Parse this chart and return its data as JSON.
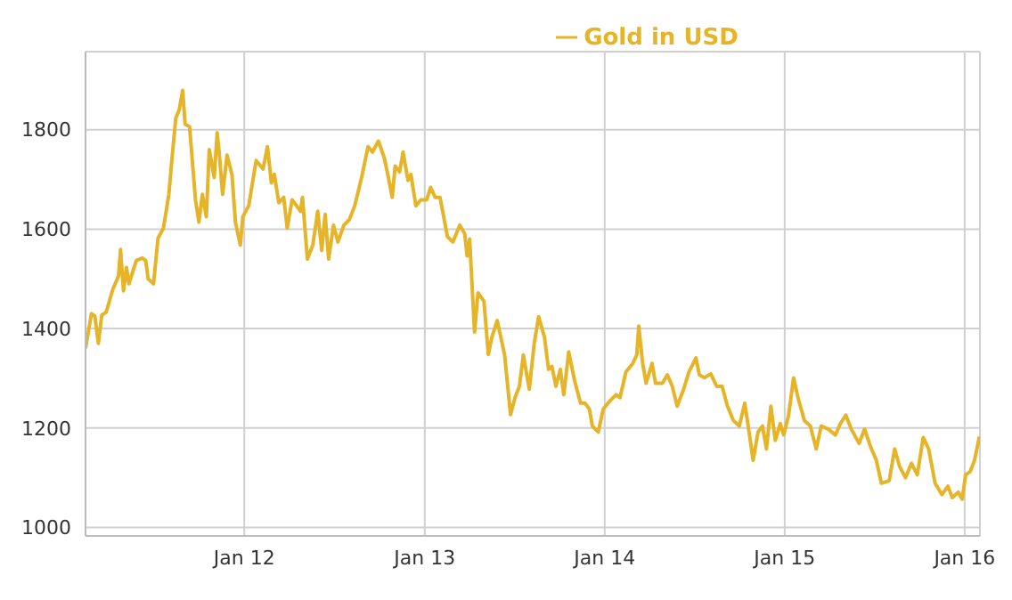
{
  "chart_data": {
    "type": "line",
    "xlim": [
      "2011-02-13",
      "2016-02-01"
    ],
    "ylim": [
      983,
      1957
    ],
    "yticks": [
      1000,
      1200,
      1400,
      1600,
      1800
    ],
    "xticks": [
      {
        "value": "2012-01-01",
        "label": "Jan 12"
      },
      {
        "value": "2013-01-01",
        "label": "Jan 13"
      },
      {
        "value": "2014-01-01",
        "label": "Jan 14"
      },
      {
        "value": "2015-01-01",
        "label": "Jan 15"
      },
      {
        "value": "2016-01-01",
        "label": "Jan 16"
      }
    ],
    "grid": true,
    "legend": "top",
    "x": [
      "2011-02-13",
      "2011-02-25",
      "2011-03-04",
      "2011-03-11",
      "2011-03-18",
      "2011-03-27",
      "2011-04-09",
      "2011-04-21",
      "2011-04-25",
      "2011-05-01",
      "2011-05-07",
      "2011-05-12",
      "2011-05-27",
      "2011-06-08",
      "2011-06-15",
      "2011-06-20",
      "2011-07-01",
      "2011-07-10",
      "2011-07-21",
      "2011-08-01",
      "2011-08-07",
      "2011-08-15",
      "2011-08-22",
      "2011-08-29",
      "2011-09-03",
      "2011-09-12",
      "2011-09-24",
      "2011-10-01",
      "2011-10-08",
      "2011-10-16",
      "2011-10-22",
      "2011-11-01",
      "2011-11-07",
      "2011-11-11",
      "2011-11-18",
      "2011-11-27",
      "2011-12-07",
      "2011-12-14",
      "2011-12-24",
      "2011-12-29",
      "2012-01-10",
      "2012-01-25",
      "2012-02-08",
      "2012-02-17",
      "2012-02-25",
      "2012-03-02",
      "2012-03-11",
      "2012-03-21",
      "2012-03-28",
      "2012-04-07",
      "2012-04-24",
      "2012-04-28",
      "2012-05-08",
      "2012-05-19",
      "2012-05-29",
      "2012-06-06",
      "2012-06-13",
      "2012-06-20",
      "2012-06-30",
      "2012-07-09",
      "2012-07-21",
      "2012-08-01",
      "2012-08-12",
      "2012-08-26",
      "2012-09-08",
      "2012-09-17",
      "2012-09-29",
      "2012-10-11",
      "2012-10-18",
      "2012-10-27",
      "2012-11-02",
      "2012-11-11",
      "2012-11-18",
      "2012-11-28",
      "2012-12-04",
      "2012-12-14",
      "2012-12-24",
      "2013-01-05",
      "2013-01-13",
      "2013-01-22",
      "2013-02-01",
      "2013-02-16",
      "2013-02-27",
      "2013-03-13",
      "2013-03-23",
      "2013-03-28",
      "2013-04-02",
      "2013-04-12",
      "2013-04-19",
      "2013-05-01",
      "2013-05-10",
      "2013-05-17",
      "2013-05-28",
      "2013-06-12",
      "2013-06-24",
      "2013-07-03",
      "2013-07-12",
      "2013-07-20",
      "2013-08-01",
      "2013-08-11",
      "2013-08-20",
      "2013-09-01",
      "2013-09-09",
      "2013-09-16",
      "2013-09-24",
      "2013-10-03",
      "2013-10-10",
      "2013-10-20",
      "2013-11-01",
      "2013-11-13",
      "2013-11-22",
      "2013-12-01",
      "2013-12-07",
      "2013-12-19",
      "2013-12-29",
      "2014-01-12",
      "2014-01-24",
      "2014-02-01",
      "2014-02-13",
      "2014-02-27",
      "2014-03-07",
      "2014-03-11",
      "2014-03-19",
      "2014-03-26",
      "2014-04-07",
      "2014-04-14",
      "2014-04-28",
      "2014-05-08",
      "2014-05-18",
      "2014-05-28",
      "2014-06-10",
      "2014-06-21",
      "2014-07-05",
      "2014-07-12",
      "2014-07-22",
      "2014-08-04",
      "2014-08-16",
      "2014-08-27",
      "2014-09-07",
      "2014-09-19",
      "2014-10-01",
      "2014-10-12",
      "2014-10-19",
      "2014-10-29",
      "2014-11-08",
      "2014-11-17",
      "2014-11-25",
      "2014-12-04",
      "2014-12-13",
      "2014-12-23",
      "2014-12-30",
      "2015-01-09",
      "2015-01-19",
      "2015-01-28",
      "2015-02-10",
      "2015-02-22",
      "2015-03-06",
      "2015-03-16",
      "2015-03-30",
      "2015-04-14",
      "2015-04-24",
      "2015-05-05",
      "2015-05-16",
      "2015-06-01",
      "2015-06-12",
      "2015-06-24",
      "2015-07-06",
      "2015-07-16",
      "2015-08-01",
      "2015-08-12",
      "2015-08-22",
      "2015-09-03",
      "2015-09-15",
      "2015-09-27",
      "2015-10-09",
      "2015-10-20",
      "2015-11-02",
      "2015-11-16",
      "2015-11-28",
      "2015-12-07",
      "2015-12-19",
      "2015-12-27",
      "2016-01-03",
      "2016-01-12",
      "2016-01-21",
      "2016-01-31"
    ],
    "series": [
      {
        "name": "Gold in USD",
        "color": "#e6b428",
        "values": [
          1360,
          1430,
          1425,
          1370,
          1427,
          1433,
          1478,
          1506,
          1559,
          1476,
          1523,
          1490,
          1537,
          1542,
          1537,
          1500,
          1490,
          1582,
          1602,
          1670,
          1738,
          1823,
          1840,
          1879,
          1811,
          1806,
          1659,
          1614,
          1670,
          1625,
          1760,
          1704,
          1794,
          1755,
          1670,
          1749,
          1710,
          1614,
          1568,
          1625,
          1647,
          1738,
          1721,
          1766,
          1693,
          1710,
          1653,
          1664,
          1602,
          1659,
          1636,
          1664,
          1540,
          1568,
          1636,
          1557,
          1630,
          1540,
          1608,
          1574,
          1608,
          1619,
          1647,
          1704,
          1766,
          1755,
          1777,
          1743,
          1710,
          1664,
          1727,
          1715,
          1755,
          1698,
          1710,
          1647,
          1659,
          1659,
          1684,
          1664,
          1664,
          1585,
          1574,
          1608,
          1591,
          1546,
          1580,
          1393,
          1472,
          1455,
          1348,
          1382,
          1416,
          1347,
          1227,
          1261,
          1284,
          1347,
          1278,
          1370,
          1424,
          1382,
          1318,
          1324,
          1284,
          1318,
          1267,
          1353,
          1295,
          1250,
          1250,
          1238,
          1204,
          1192,
          1238,
          1255,
          1267,
          1261,
          1313,
          1330,
          1347,
          1405,
          1330,
          1290,
          1330,
          1290,
          1290,
          1307,
          1284,
          1244,
          1278,
          1313,
          1341,
          1307,
          1301,
          1309,
          1284,
          1284,
          1244,
          1215,
          1204,
          1250,
          1204,
          1135,
          1192,
          1204,
          1158,
          1244,
          1175,
          1209,
          1186,
          1226,
          1301,
          1261,
          1215,
          1204,
          1158,
          1204,
          1198,
          1186,
          1209,
          1226,
          1198,
          1169,
          1198,
          1163,
          1135,
          1089,
          1094,
          1158,
          1123,
          1100,
          1129,
          1106,
          1181,
          1158,
          1089,
          1066,
          1083,
          1060,
          1071,
          1057,
          1106,
          1112,
          1135,
          1183
        ]
      }
    ]
  }
}
